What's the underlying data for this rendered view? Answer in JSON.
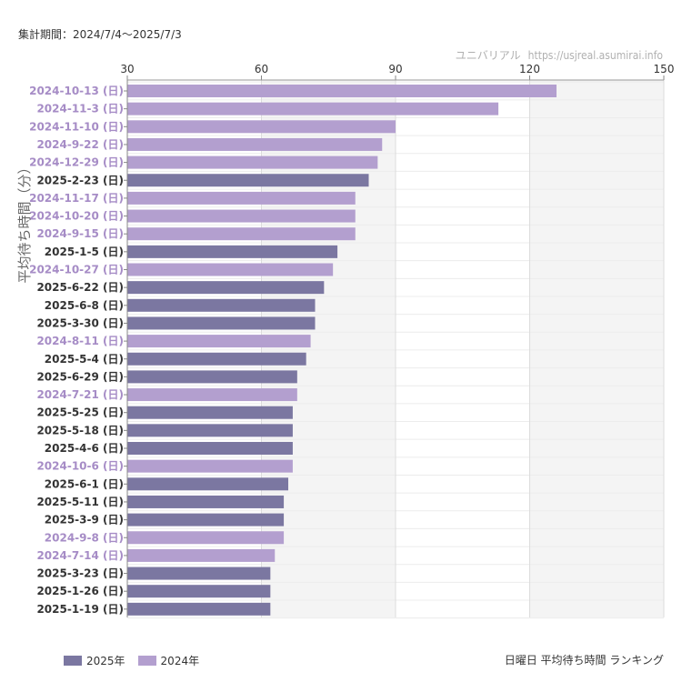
{
  "header": {
    "period": "集計期間：2024/7/4〜2025/7/3",
    "source_name": "ユニバリアル",
    "source_url": "https://usjreal.asumirai.info"
  },
  "footer": {
    "title": "日曜日 平均待ち時間 ランキング"
  },
  "colors": {
    "series_2025": "#7b77a1",
    "series_2024": "#b39fcf",
    "label_2025": "#333333",
    "label_2024": "#a68cc6",
    "grid": "#dcdcdc",
    "band": "#f4f4f4"
  },
  "chart_data": {
    "type": "bar",
    "orientation": "horizontal",
    "ylabel": "平均待ち時間（分）",
    "xlim": [
      30,
      150
    ],
    "x_ticks": [
      30,
      60,
      90,
      120,
      150
    ],
    "legend_position": "bottom-left",
    "series": [
      {
        "name": "2025年",
        "key": "2025"
      },
      {
        "name": "2024年",
        "key": "2024"
      }
    ],
    "categories": [
      "2024-10-13 (日)",
      "2024-11-3 (日)",
      "2024-11-10 (日)",
      "2024-9-22 (日)",
      "2024-12-29 (日)",
      "2025-2-23 (日)",
      "2024-11-17 (日)",
      "2024-10-20 (日)",
      "2024-9-15 (日)",
      "2025-1-5 (日)",
      "2024-10-27 (日)",
      "2025-6-22 (日)",
      "2025-6-8 (日)",
      "2025-3-30 (日)",
      "2024-8-11 (日)",
      "2025-5-4 (日)",
      "2025-6-29 (日)",
      "2024-7-21 (日)",
      "2025-5-25 (日)",
      "2025-5-18 (日)",
      "2025-4-6 (日)",
      "2024-10-6 (日)",
      "2025-6-1 (日)",
      "2025-5-11 (日)",
      "2025-3-9 (日)",
      "2024-9-8 (日)",
      "2024-7-14 (日)",
      "2025-3-23 (日)",
      "2025-1-26 (日)",
      "2025-1-19 (日)"
    ],
    "values": [
      126,
      113,
      90,
      87,
      86,
      84,
      81,
      81,
      81,
      77,
      76,
      74,
      72,
      72,
      71,
      70,
      68,
      68,
      67,
      67,
      67,
      67,
      66,
      65,
      65,
      65,
      63,
      62,
      62,
      62
    ],
    "series_of_bar": [
      "2024",
      "2024",
      "2024",
      "2024",
      "2024",
      "2025",
      "2024",
      "2024",
      "2024",
      "2025",
      "2024",
      "2025",
      "2025",
      "2025",
      "2024",
      "2025",
      "2025",
      "2024",
      "2025",
      "2025",
      "2025",
      "2024",
      "2025",
      "2025",
      "2025",
      "2024",
      "2024",
      "2025",
      "2025",
      "2025"
    ]
  }
}
